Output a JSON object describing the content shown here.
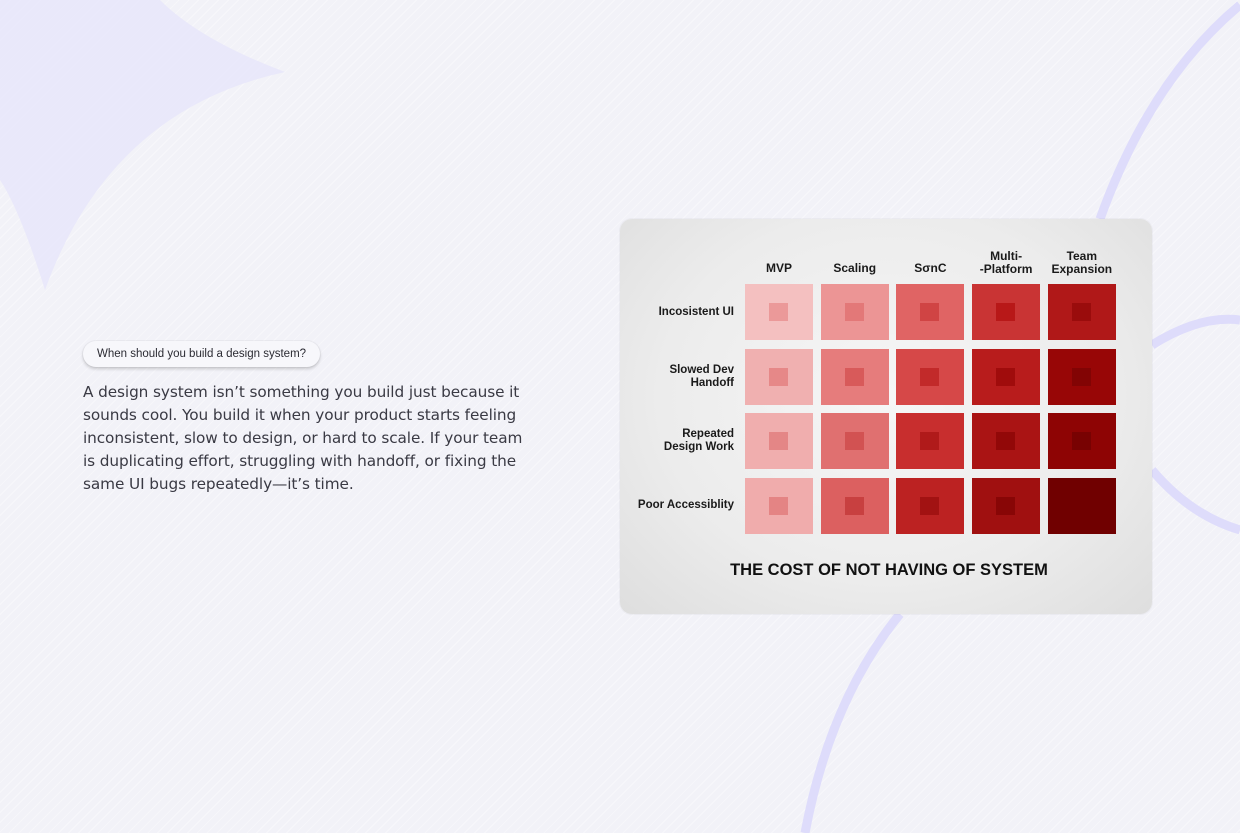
{
  "intro": {
    "question": "When should you build a design system?",
    "body": "A design system isn’t something you build just because it sounds cool. You build it when your product starts feeling inconsistent, slow to design, or hard to scale. If your team is duplicating effort, struggling with handoff, or fixing the same UI bugs repeatedly—it’s time."
  },
  "chart_data": {
    "type": "heatmap",
    "title": "THE COST OF NOT HAVING OF SYSTEM",
    "columns": [
      {
        "label": "MVP"
      },
      {
        "label": "Scaling"
      },
      {
        "label": "SσnC"
      },
      {
        "label": "Multi-\n-Platform"
      },
      {
        "label": "Team\nExpansion"
      }
    ],
    "rows": [
      {
        "label": "Incosistent UI"
      },
      {
        "label": "Slowed Dev\nHandoff"
      },
      {
        "label": "Repeated\nDesign Work"
      },
      {
        "label": "Poor Accessiblity"
      }
    ],
    "cells": [
      [
        {
          "outer": "#f4c0c0",
          "inner": "#eb9999"
        },
        {
          "outer": "#ec9595",
          "inner": "#e37878"
        },
        {
          "outer": "#e06464",
          "inner": "#d04444"
        },
        {
          "outer": "#c93434",
          "inner": "#b81818"
        },
        {
          "outer": "#b01818",
          "inner": "#9a0c0c"
        }
      ],
      [
        {
          "outer": "#f0b0b0",
          "inner": "#e68888"
        },
        {
          "outer": "#e67c7c",
          "inner": "#d85a5a"
        },
        {
          "outer": "#d64848",
          "inner": "#c22a2a"
        },
        {
          "outer": "#b81c1c",
          "inner": "#a00c0c"
        },
        {
          "outer": "#980606",
          "inner": "#820404"
        }
      ],
      [
        {
          "outer": "#f0aeae",
          "inner": "#e48686"
        },
        {
          "outer": "#e07070",
          "inner": "#d25252"
        },
        {
          "outer": "#c82e2e",
          "inner": "#b01a1a"
        },
        {
          "outer": "#aa1414",
          "inner": "#920808"
        },
        {
          "outer": "#8e0404",
          "inner": "#780202"
        }
      ],
      [
        {
          "outer": "#f0acac",
          "inner": "#e48484"
        },
        {
          "outer": "#dc6060",
          "inner": "#c84040"
        },
        {
          "outer": "#bc2222",
          "inner": "#a21212"
        },
        {
          "outer": "#a01010",
          "inner": "#880606"
        },
        {
          "outer": "#700000",
          "inner": "#700000"
        }
      ]
    ]
  }
}
